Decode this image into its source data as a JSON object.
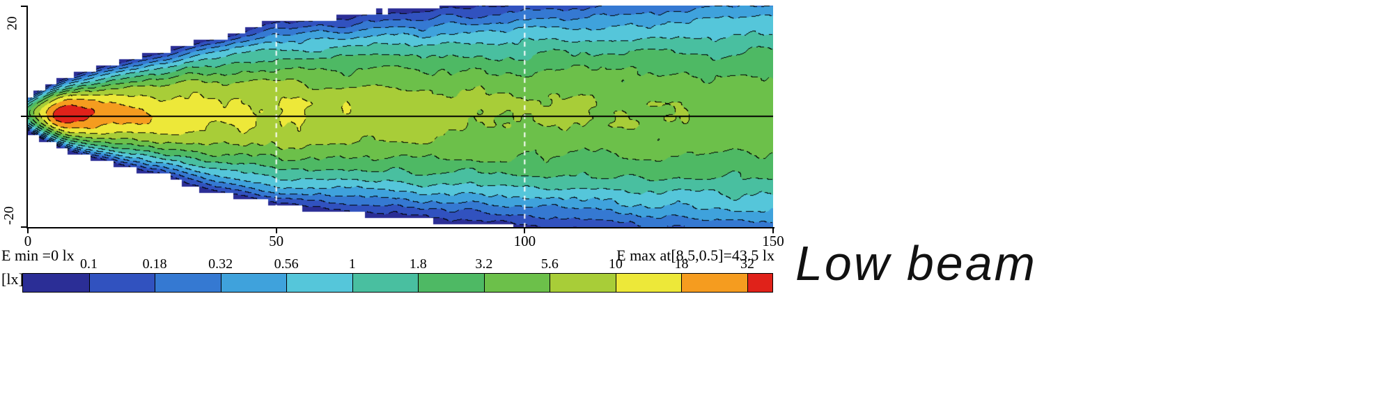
{
  "figure": {
    "caption": "Low beam"
  },
  "chart_data": {
    "type": "heatmap",
    "subtype": "isolux-contour-map",
    "x_range": [
      0,
      150
    ],
    "y_range": [
      -20,
      20
    ],
    "x_ticks": [
      0,
      50,
      100,
      150
    ],
    "y_tick_labels": [
      "20",
      "-20"
    ],
    "annotations": {
      "e_min": "E min =0 lx",
      "e_max": "E max at[8.5,0.5]=43.5 lx"
    },
    "colorbar": {
      "unit_label": "[lx]",
      "levels": [
        0.1,
        0.18,
        0.32,
        0.56,
        1,
        1.8,
        3.2,
        5.6,
        10,
        18,
        32
      ],
      "colors": [
        "#2b2e96",
        "#3152bf",
        "#3579d2",
        "#3fa2dc",
        "#55c6da",
        "#49bfa0",
        "#4eb964",
        "#6cc04a",
        "#a8cd38",
        "#ede839",
        "#f59c1f",
        "#e0221a"
      ]
    },
    "peak": {
      "x": 8.5,
      "y": 0.5,
      "value_lx": 43.5
    },
    "min_lx": 0,
    "reference_lines": {
      "horizontal_y": 0,
      "vertical_dashed_x": [
        50,
        100
      ]
    },
    "centerline_profile": {
      "x": [
        0,
        8.5,
        25,
        50,
        100,
        150
      ],
      "lx": [
        2.3,
        43.5,
        16,
        10.5,
        6,
        4.4
      ]
    },
    "render_model": {
      "left_sigma_x": 3.5,
      "falloff_exponent": 0.8,
      "sigma0": 1.7,
      "sigma_slope": 0.118,
      "sigma_slope_far": 0.045,
      "sigma_break_x": 50,
      "y_offset": 0.4,
      "noise_amp": 0.32,
      "cutoff_lx": 0.075,
      "cell_size_m": 1.15
    }
  }
}
